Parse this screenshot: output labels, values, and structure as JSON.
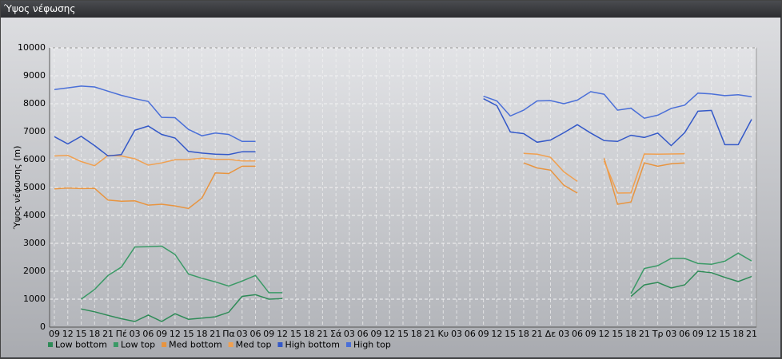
{
  "chart_data": {
    "type": "line",
    "title": "Ύψος νέφωσης",
    "y_label": "Ύψος νέφωσης (m)",
    "categories": [
      "09",
      "12",
      "15",
      "18",
      "21",
      "Πέ",
      "03",
      "06",
      "09",
      "12",
      "15",
      "18",
      "21",
      "Πα",
      "03",
      "06",
      "09",
      "12",
      "15",
      "18",
      "21",
      "Σά",
      "03",
      "06",
      "09",
      "12",
      "15",
      "18",
      "21",
      "Κυ",
      "03",
      "06",
      "09",
      "12",
      "15",
      "18",
      "21",
      "Δε",
      "03",
      "06",
      "09",
      "12",
      "15",
      "18",
      "21",
      "Τρ",
      "03",
      "06",
      "09",
      "12",
      "15",
      "18",
      "21"
    ],
    "ylim": [
      0,
      10000
    ],
    "yticks": [
      0,
      1000,
      2000,
      3000,
      4000,
      5000,
      6000,
      7000,
      8000,
      9000,
      10000
    ],
    "grid": true,
    "legend": "bottom",
    "series": [
      {
        "name": "Low bottom",
        "color": "#2e8b57",
        "values": [
          null,
          null,
          650,
          550,
          420,
          300,
          200,
          430,
          200,
          480,
          280,
          320,
          370,
          530,
          1100,
          1160,
          1000,
          1020,
          null,
          null,
          null,
          null,
          null,
          null,
          null,
          null,
          null,
          null,
          null,
          null,
          null,
          null,
          null,
          null,
          null,
          null,
          null,
          null,
          null,
          null,
          null,
          null,
          null,
          1100,
          1510,
          1600,
          1400,
          1510,
          2000,
          1950,
          1780,
          1630,
          1810
        ]
      },
      {
        "name": "Low top",
        "color": "#3a9a66",
        "values": [
          null,
          null,
          1000,
          1350,
          1850,
          2150,
          2870,
          2880,
          2900,
          2600,
          1900,
          1750,
          1620,
          1470,
          1650,
          1850,
          1230,
          1230,
          null,
          null,
          null,
          null,
          null,
          null,
          null,
          null,
          null,
          null,
          null,
          null,
          null,
          null,
          null,
          null,
          null,
          null,
          null,
          null,
          null,
          null,
          null,
          null,
          null,
          1200,
          2100,
          2200,
          2460,
          2460,
          2280,
          2250,
          2360,
          2650,
          2370
        ]
      },
      {
        "name": "Med bottom",
        "color": "#e8943f",
        "values": [
          4950,
          4980,
          4960,
          4970,
          4550,
          4510,
          4520,
          4370,
          4400,
          4340,
          4250,
          4620,
          5520,
          5500,
          5760,
          5760,
          null,
          null,
          null,
          null,
          null,
          null,
          null,
          null,
          null,
          null,
          null,
          null,
          null,
          null,
          null,
          null,
          null,
          null,
          null,
          5880,
          5700,
          5620,
          5080,
          4800,
          null,
          6050,
          4400,
          4480,
          5880,
          5760,
          5850,
          5880,
          null,
          null,
          null,
          null,
          null
        ]
      },
      {
        "name": "Med top",
        "color": "#f0a050",
        "values": [
          6130,
          6150,
          5930,
          5780,
          6150,
          6130,
          6030,
          5800,
          5880,
          5990,
          6000,
          6050,
          6010,
          6010,
          5950,
          5950,
          null,
          null,
          null,
          null,
          null,
          null,
          null,
          null,
          null,
          null,
          null,
          null,
          null,
          null,
          null,
          null,
          null,
          null,
          null,
          6220,
          6190,
          6080,
          5560,
          5220,
          null,
          5950,
          4800,
          4810,
          6200,
          6190,
          6200,
          6210,
          null,
          null,
          null,
          null,
          null
        ]
      },
      {
        "name": "High bottom",
        "color": "#3358c8",
        "values": [
          6820,
          6560,
          6830,
          6500,
          6130,
          6180,
          7050,
          7200,
          6900,
          6770,
          6290,
          6230,
          6190,
          6180,
          6280,
          6280,
          null,
          null,
          null,
          null,
          null,
          null,
          null,
          null,
          null,
          null,
          null,
          null,
          null,
          null,
          null,
          null,
          8180,
          7930,
          6990,
          6930,
          6620,
          6700,
          6960,
          7250,
          6950,
          6680,
          6650,
          6870,
          6790,
          6950,
          6500,
          6960,
          7730,
          7760,
          6530,
          6530,
          7440
        ]
      },
      {
        "name": "High top",
        "color": "#4a6fd8",
        "values": [
          8510,
          8570,
          8630,
          8600,
          8450,
          8300,
          8180,
          8080,
          7510,
          7500,
          7080,
          6850,
          6950,
          6900,
          6650,
          6650,
          null,
          null,
          null,
          null,
          null,
          null,
          null,
          null,
          null,
          null,
          null,
          null,
          null,
          null,
          null,
          null,
          8270,
          8100,
          7560,
          7770,
          8100,
          8110,
          8000,
          8130,
          8430,
          8340,
          7770,
          7840,
          7480,
          7590,
          7830,
          7950,
          8380,
          8350,
          8290,
          8320,
          8250
        ]
      }
    ]
  }
}
